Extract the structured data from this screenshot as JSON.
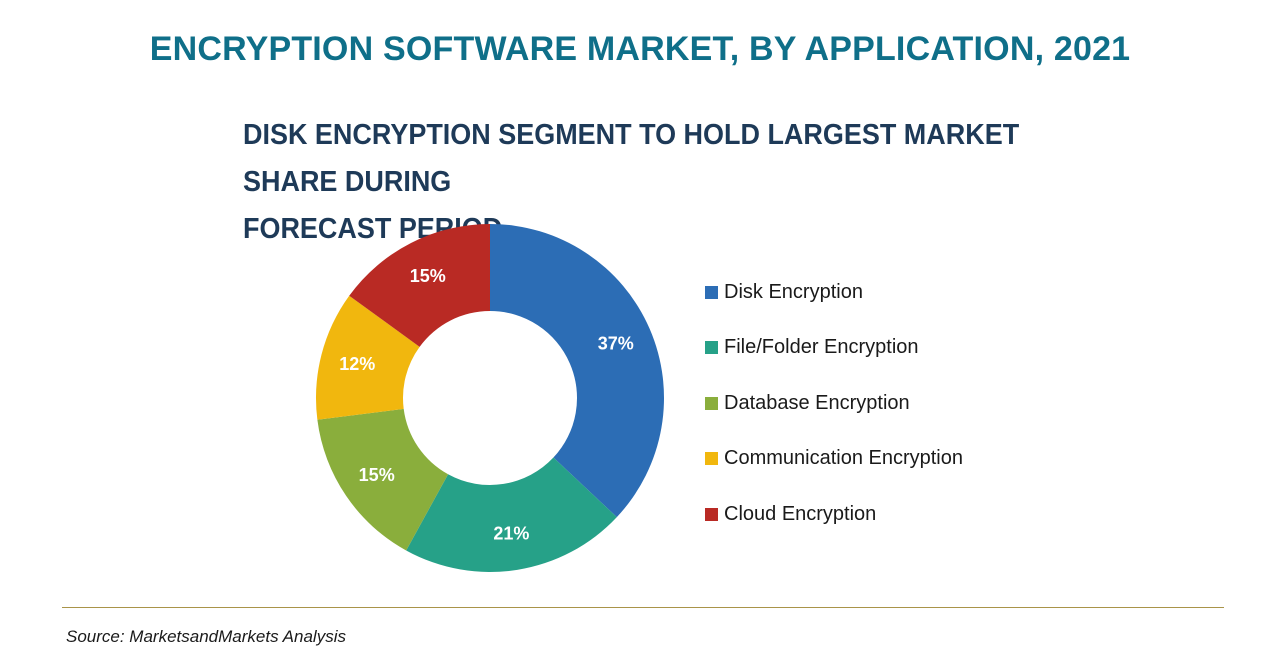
{
  "chart_data": {
    "type": "pie",
    "donut": true,
    "title": "ENCRYPTION SOFTWARE MARKET, BY APPLICATION, 2021",
    "subtitle_lines": [
      "DISK ENCRYPTION SEGMENT TO HOLD LARGEST MARKET SHARE DURING",
      "FORECAST PERIOD"
    ],
    "legend_position": "right",
    "slices": [
      {
        "name": "Disk Encryption",
        "value": 37,
        "label": "37%",
        "color": "#2c6db5"
      },
      {
        "name": "File/Folder Encryption",
        "value": 21,
        "label": "21%",
        "color": "#26a188"
      },
      {
        "name": "Database Encryption",
        "value": 15,
        "label": "15%",
        "color": "#8aae3c"
      },
      {
        "name": "Communication Encryption",
        "value": 12,
        "label": "12%",
        "color": "#f1b70e"
      },
      {
        "name": "Cloud Encryption",
        "value": 15,
        "label": "15%",
        "color": "#b92a24"
      }
    ]
  },
  "footer": {
    "source": "Source: MarketsandMarkets Analysis"
  }
}
